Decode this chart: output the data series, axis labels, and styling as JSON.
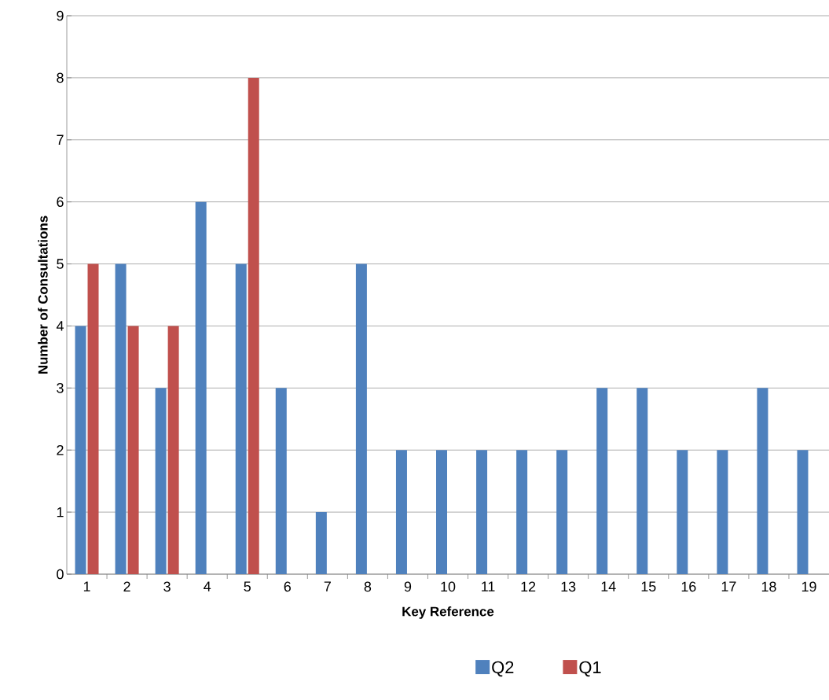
{
  "chart_data": {
    "type": "bar",
    "xlabel": "Key Reference",
    "ylabel": "Number of Consultations",
    "categories": [
      "1",
      "2",
      "3",
      "4",
      "5",
      "6",
      "7",
      "8",
      "9",
      "10",
      "11",
      "12",
      "13",
      "14",
      "15",
      "16",
      "17",
      "18",
      "19"
    ],
    "series": [
      {
        "name": "Q2",
        "color": "#4f81bd",
        "values": [
          4,
          5,
          3,
          6,
          5,
          3,
          1,
          5,
          2,
          2,
          2,
          2,
          2,
          3,
          3,
          2,
          2,
          3,
          2
        ]
      },
      {
        "name": "Q1",
        "color": "#c0504d",
        "values": [
          5,
          4,
          4,
          null,
          8,
          null,
          null,
          null,
          null,
          null,
          null,
          null,
          null,
          null,
          null,
          null,
          null,
          null,
          null
        ]
      }
    ],
    "ylim": [
      0,
      9
    ],
    "yticks": [
      0,
      1,
      2,
      3,
      4,
      5,
      6,
      7,
      8,
      9
    ],
    "grid": "y",
    "legend": "bottom"
  }
}
